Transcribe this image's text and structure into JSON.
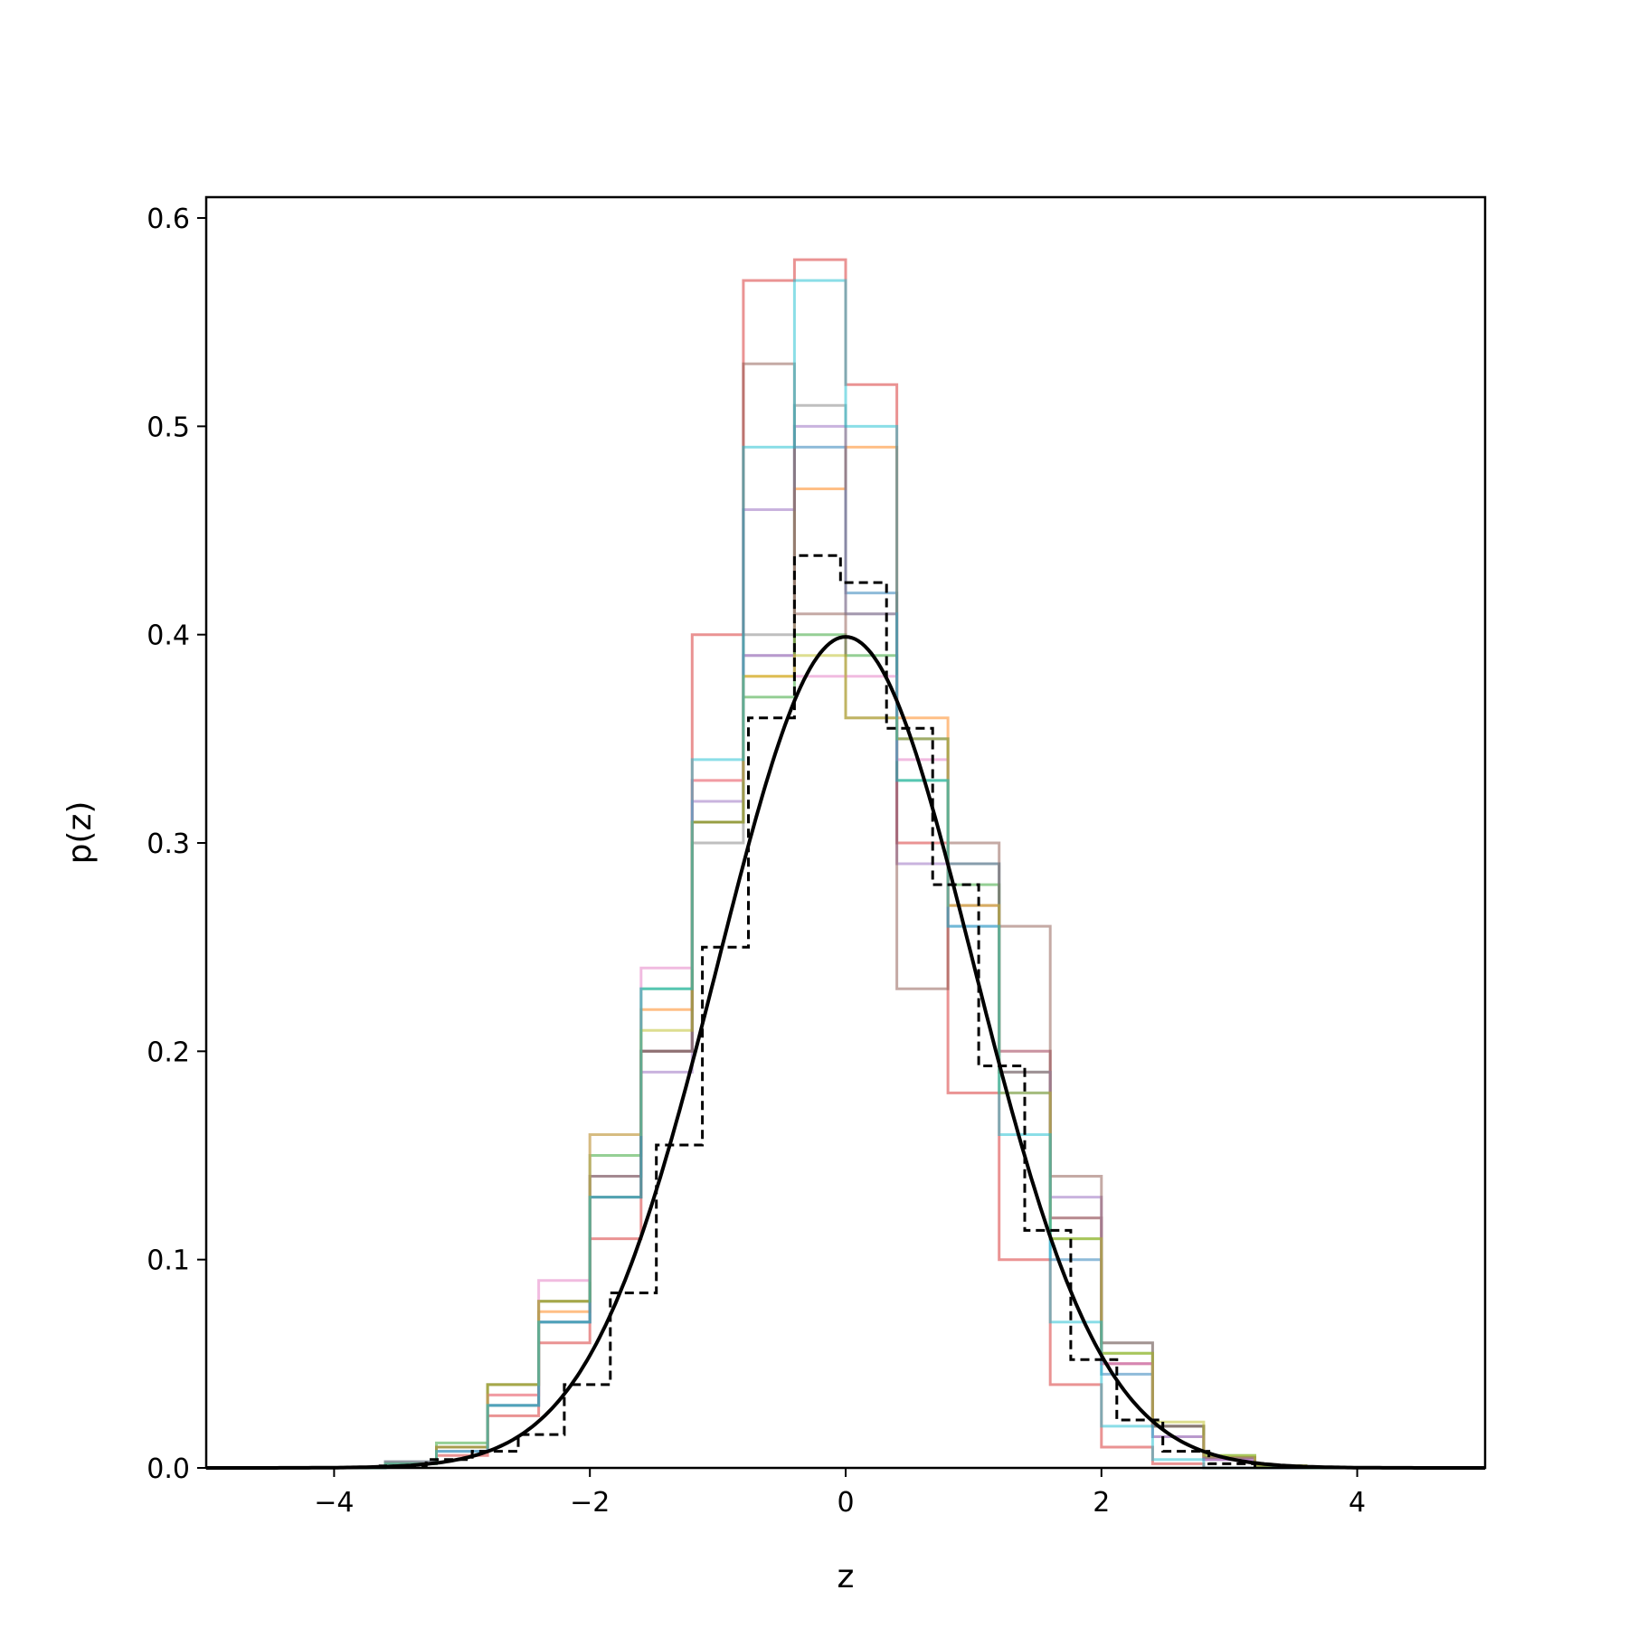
{
  "chart_data": {
    "type": "line",
    "title": "",
    "xlabel": "z",
    "ylabel": "p(z)",
    "xlim": [
      -5,
      5
    ],
    "ylim": [
      0,
      0.61
    ],
    "xticks": [
      -4,
      -2,
      0,
      2,
      4
    ],
    "xtick_labels": [
      "−4",
      "−2",
      "0",
      "2",
      "4"
    ],
    "yticks": [
      0.0,
      0.1,
      0.2,
      0.3,
      0.4,
      0.5,
      0.6
    ],
    "ytick_labels": [
      "0.0",
      "0.1",
      "0.2",
      "0.3",
      "0.4",
      "0.5",
      "0.6"
    ],
    "grid": false,
    "legend": "none",
    "bin_edges": [
      -4.0,
      -3.6,
      -3.2,
      -2.8,
      -2.4,
      -2.0,
      -1.6,
      -1.2,
      -0.8,
      -0.4,
      0.0,
      0.4,
      0.8,
      1.2,
      1.6,
      2.0,
      2.4,
      2.8,
      3.2,
      3.6,
      4.0
    ],
    "histograms": [
      {
        "color": "#1f77b4",
        "values": [
          0,
          0.002,
          0.008,
          0.03,
          0.07,
          0.13,
          0.2,
          0.31,
          0.39,
          0.49,
          0.42,
          0.35,
          0.29,
          0.18,
          0.1,
          0.045,
          0.015,
          0.004,
          0,
          0
        ]
      },
      {
        "color": "#ff7f0e",
        "values": [
          0,
          0.002,
          0.01,
          0.035,
          0.075,
          0.14,
          0.22,
          0.33,
          0.38,
          0.47,
          0.49,
          0.36,
          0.27,
          0.2,
          0.12,
          0.05,
          0.02,
          0.005,
          0.001,
          0
        ]
      },
      {
        "color": "#2ca02c",
        "values": [
          0,
          0.003,
          0.012,
          0.04,
          0.08,
          0.15,
          0.23,
          0.31,
          0.37,
          0.4,
          0.39,
          0.33,
          0.28,
          0.19,
          0.11,
          0.055,
          0.02,
          0.006,
          0.001,
          0
        ]
      },
      {
        "color": "#d62728",
        "values": [
          0,
          0.002,
          0.006,
          0.025,
          0.06,
          0.11,
          0.2,
          0.4,
          0.57,
          0.58,
          0.52,
          0.3,
          0.18,
          0.1,
          0.04,
          0.01,
          0.002,
          0,
          0,
          0
        ]
      },
      {
        "color": "#9467bd",
        "values": [
          0,
          0.003,
          0.01,
          0.03,
          0.07,
          0.14,
          0.19,
          0.32,
          0.46,
          0.5,
          0.41,
          0.29,
          0.26,
          0.2,
          0.13,
          0.05,
          0.02,
          0.004,
          0,
          0
        ]
      },
      {
        "color": "#8c564b",
        "values": [
          0,
          0.002,
          0.01,
          0.04,
          0.08,
          0.13,
          0.2,
          0.31,
          0.53,
          0.41,
          0.36,
          0.23,
          0.3,
          0.26,
          0.14,
          0.06,
          0.02,
          0.005,
          0,
          0
        ]
      },
      {
        "color": "#e377c2",
        "values": [
          0,
          0.002,
          0.008,
          0.035,
          0.09,
          0.16,
          0.24,
          0.33,
          0.39,
          0.38,
          0.38,
          0.34,
          0.27,
          0.19,
          0.12,
          0.05,
          0.015,
          0.004,
          0,
          0
        ]
      },
      {
        "color": "#7f7f7f",
        "values": [
          0,
          0.002,
          0.01,
          0.03,
          0.07,
          0.14,
          0.2,
          0.3,
          0.4,
          0.51,
          0.41,
          0.35,
          0.29,
          0.19,
          0.12,
          0.06,
          0.02,
          0.005,
          0.001,
          0
        ]
      },
      {
        "color": "#bcbd22",
        "values": [
          0,
          0.002,
          0.01,
          0.04,
          0.08,
          0.16,
          0.21,
          0.31,
          0.38,
          0.39,
          0.36,
          0.35,
          0.27,
          0.18,
          0.11,
          0.055,
          0.022,
          0.006,
          0.001,
          0
        ]
      },
      {
        "color": "#17becf",
        "values": [
          0,
          0.002,
          0.008,
          0.03,
          0.07,
          0.13,
          0.23,
          0.34,
          0.49,
          0.57,
          0.5,
          0.33,
          0.26,
          0.16,
          0.07,
          0.02,
          0.004,
          0,
          0,
          0
        ]
      }
    ],
    "dashed_histogram": {
      "color": "#000000",
      "bin_edges": [
        -3.64,
        -3.28,
        -2.92,
        -2.56,
        -2.2,
        -1.84,
        -1.48,
        -1.12,
        -0.76,
        -0.4,
        -0.04,
        0.32,
        0.68,
        1.04,
        1.4,
        1.76,
        2.12,
        2.48,
        2.84,
        3.2
      ],
      "values": [
        0.001,
        0.004,
        0.008,
        0.016,
        0.04,
        0.084,
        0.155,
        0.25,
        0.36,
        0.438,
        0.425,
        0.355,
        0.28,
        0.193,
        0.114,
        0.052,
        0.023,
        0.008,
        0.002
      ]
    },
    "reference_curve": {
      "color": "#000000",
      "form": "standard normal pdf",
      "mean": 0,
      "std": 1,
      "peak": 0.399
    }
  }
}
